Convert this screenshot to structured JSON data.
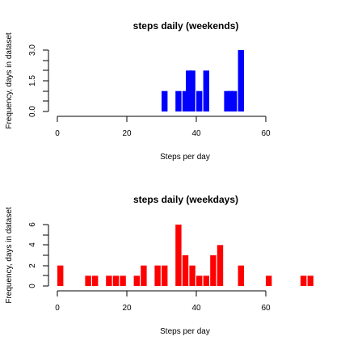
{
  "chart_data": [
    {
      "type": "bar",
      "title": "steps daily (weekends)",
      "xlabel": "Steps per day",
      "ylabel": "Frequency, days in dataset",
      "color": "#0000ff",
      "xlim": [
        0,
        60
      ],
      "ylim": [
        0,
        3
      ],
      "x_ticks": [
        "0",
        "20",
        "40",
        "60"
      ],
      "y_ticks": [
        "0.0",
        "1.5",
        "3.0"
      ],
      "bin_width": 1,
      "x": [
        30,
        34,
        36,
        37,
        38,
        40,
        42,
        48,
        49,
        50,
        52
      ],
      "values": [
        1,
        1,
        1,
        2,
        2,
        1,
        2,
        1,
        1,
        1,
        3
      ]
    },
    {
      "type": "bar",
      "title": "steps  daily (weekdays)",
      "xlabel": "Steps per day",
      "ylabel": "Frequency, days in dataset",
      "color": "#ff0000",
      "xlim": [
        0,
        72
      ],
      "ylim": [
        0,
        6
      ],
      "x_ticks": [
        "0",
        "20",
        "40",
        "60"
      ],
      "y_ticks": [
        "0",
        "2",
        "4",
        "6"
      ],
      "bin_width": 1,
      "x": [
        0,
        8,
        10,
        14,
        16,
        18,
        22,
        24,
        28,
        30,
        34,
        36,
        38,
        40,
        42,
        44,
        46,
        52,
        60,
        70,
        72
      ],
      "values": [
        2,
        1,
        1,
        1,
        1,
        1,
        1,
        2,
        2,
        2,
        6,
        3,
        2,
        1,
        1,
        3,
        4,
        2,
        1,
        1,
        1
      ]
    }
  ]
}
